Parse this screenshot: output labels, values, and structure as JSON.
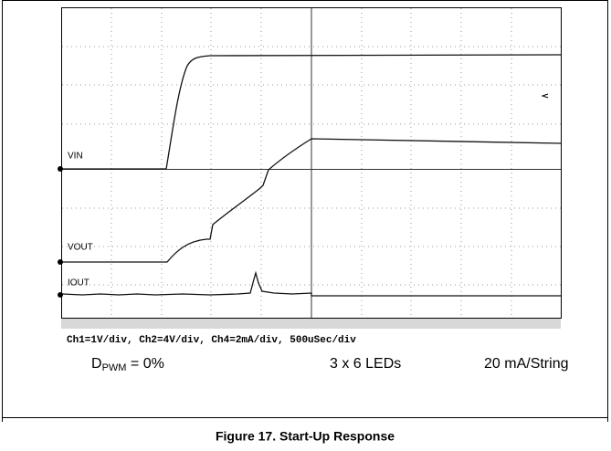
{
  "scope": {
    "traces": [
      {
        "label": "VIN"
      },
      {
        "label": "VOUT"
      },
      {
        "label": "IOUT"
      }
    ],
    "settings": "Ch1=1V/div, Ch2=4V/div, Ch4=2mA/div, 500uSec/div"
  },
  "conditions": {
    "duty": {
      "symbol": "D",
      "subscript": "PWM",
      "rest": " = 0%"
    },
    "leds": "3 x 6 LEDs",
    "current": "20 mA/String"
  },
  "caption": "Figure 17. Start-Up Response"
}
